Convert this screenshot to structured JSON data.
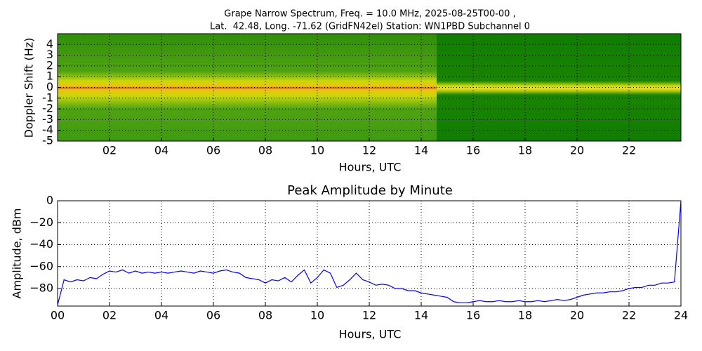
{
  "chart_data": [
    {
      "type": "spectrogram",
      "title": [
        "Grape Narrow Spectrum, Freq. = 10.0 MHz, 2025-08-25T00-00 ,",
        "Lat.  42.48, Long. -71.62 (GridFN42el) Station: WN1PBD Subchannel 0"
      ],
      "xlabel": "Hours, UTC",
      "ylabel": "Doppler Shift (Hz)",
      "xlim": [
        0,
        24
      ],
      "ylim": [
        -5,
        5
      ],
      "xticks": [
        {
          "value": 2,
          "label": "02"
        },
        {
          "value": 4,
          "label": "04"
        },
        {
          "value": 6,
          "label": "06"
        },
        {
          "value": 8,
          "label": "08"
        },
        {
          "value": 10,
          "label": "10"
        },
        {
          "value": 12,
          "label": "12"
        },
        {
          "value": 14,
          "label": "14"
        },
        {
          "value": 16,
          "label": "16"
        },
        {
          "value": 18,
          "label": "18"
        },
        {
          "value": 20,
          "label": "20"
        },
        {
          "value": 22,
          "label": "22"
        }
      ],
      "yticks": [
        4,
        3,
        2,
        1,
        0,
        -1,
        -2,
        -3,
        -4,
        -5
      ],
      "grid": true
    },
    {
      "type": "line",
      "title": "Peak Amplitude by Minute",
      "xlabel": "Hours, UTC",
      "ylabel": "Amplitude, dBm",
      "xlim": [
        0,
        24
      ],
      "ylim": [
        -96,
        0
      ],
      "xticks": [
        {
          "value": 0,
          "label": "00"
        },
        {
          "value": 2,
          "label": "02"
        },
        {
          "value": 4,
          "label": "04"
        },
        {
          "value": 6,
          "label": "06"
        },
        {
          "value": 8,
          "label": "08"
        },
        {
          "value": 10,
          "label": "10"
        },
        {
          "value": 12,
          "label": "12"
        },
        {
          "value": 14,
          "label": "14"
        },
        {
          "value": 16,
          "label": "16"
        },
        {
          "value": 18,
          "label": "18"
        },
        {
          "value": 20,
          "label": "20"
        },
        {
          "value": 22,
          "label": "22"
        },
        {
          "value": 24,
          "label": "24"
        }
      ],
      "yticks": [
        0,
        {
          "value": -20,
          "label": "−20"
        },
        {
          "value": -40,
          "label": "−40"
        },
        {
          "value": -60,
          "label": "−60"
        },
        {
          "value": -80,
          "label": "−80"
        }
      ],
      "grid": true,
      "color": "#0000ff",
      "x": [
        0,
        0.25,
        0.5,
        0.75,
        1,
        1.25,
        1.5,
        1.75,
        2,
        2.25,
        2.5,
        2.75,
        3,
        3.25,
        3.5,
        3.75,
        4,
        4.25,
        4.5,
        4.75,
        5,
        5.25,
        5.5,
        5.75,
        6,
        6.25,
        6.5,
        6.75,
        7,
        7.25,
        7.5,
        7.75,
        8,
        8.25,
        8.5,
        8.75,
        9,
        9.25,
        9.5,
        9.75,
        10,
        10.25,
        10.5,
        10.75,
        11,
        11.25,
        11.5,
        11.75,
        12,
        12.25,
        12.5,
        12.75,
        13,
        13.25,
        13.5,
        13.75,
        14,
        14.25,
        14.5,
        14.75,
        15,
        15.25,
        15.5,
        15.75,
        16,
        16.25,
        16.5,
        16.75,
        17,
        17.25,
        17.5,
        17.75,
        18,
        18.25,
        18.5,
        18.75,
        19,
        19.25,
        19.5,
        19.75,
        20,
        20.25,
        20.5,
        20.75,
        21,
        21.25,
        21.5,
        21.75,
        22,
        22.25,
        22.5,
        22.75,
        23,
        23.25,
        23.5,
        23.75,
        24
      ],
      "values": [
        -95,
        -72,
        -74,
        -72,
        -73,
        -70,
        -71,
        -67,
        -64,
        -65,
        -63,
        -66,
        -64,
        -66,
        -65,
        -66,
        -65,
        -66,
        -65,
        -64,
        -65,
        -66,
        -64,
        -65,
        -66,
        -64,
        -63,
        -65,
        -66,
        -70,
        -71,
        -72,
        -75,
        -72,
        -73,
        -70,
        -74,
        -68,
        -63,
        -75,
        -70,
        -63,
        -66,
        -79,
        -77,
        -72,
        -66,
        -72,
        -74,
        -77,
        -76,
        -77,
        -80,
        -80,
        -82,
        -82,
        -84,
        -85,
        -86,
        -87,
        -88,
        -92,
        -93,
        -93,
        -92,
        -91,
        -92,
        -92,
        -91,
        -92,
        -92,
        -91,
        -92,
        -92,
        -91,
        -92,
        -91,
        -90,
        -91,
        -90,
        -88,
        -86,
        -85,
        -84,
        -84,
        -83,
        -83,
        -82,
        -80,
        -79,
        -79,
        -77,
        -77,
        -75,
        -75,
        -74,
        0
      ]
    }
  ]
}
